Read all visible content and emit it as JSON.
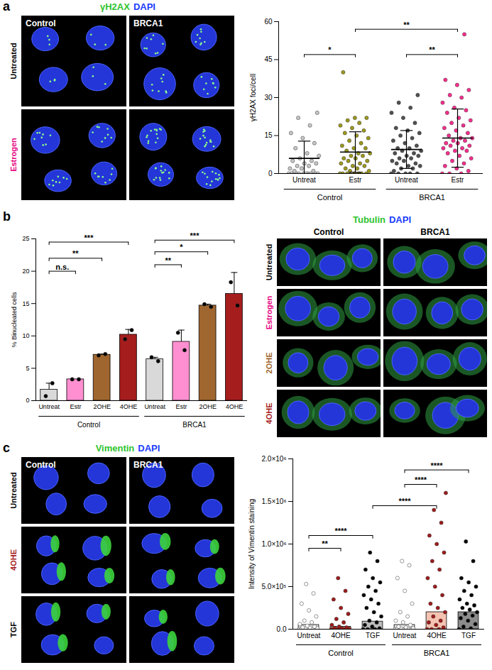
{
  "chart_data": [
    {
      "panel": "a",
      "type": "scatter",
      "ylabel": "γH2AX foci/cell",
      "categories": [
        "Untreat",
        "Estr",
        "Untreat",
        "Estr"
      ],
      "groups": [
        "Control",
        "Control",
        "BRCA1",
        "BRCA1"
      ],
      "ylim": [
        0,
        60
      ],
      "yticks": [
        0,
        15,
        30,
        45,
        60
      ],
      "series": [
        {
          "type": "scatter",
          "colors": [
            "#c8c8c8",
            "#9d9a1e",
            "#505050",
            "#ff2d8f"
          ],
          "values": [
            [
              0,
              0,
              0,
              0,
              0,
              0,
              0,
              0,
              0,
              0,
              1,
              1,
              2,
              2,
              3,
              3,
              4,
              4,
              5,
              5,
              6,
              7,
              8,
              10,
              12,
              14,
              16,
              19,
              22,
              24
            ],
            [
              0,
              0,
              0,
              0,
              0,
              0,
              0,
              1,
              1,
              2,
              2,
              3,
              3,
              4,
              4,
              5,
              5,
              6,
              6,
              7,
              7,
              8,
              8,
              9,
              10,
              10,
              11,
              12,
              13,
              14,
              15,
              16,
              17,
              18,
              19,
              20,
              21,
              22,
              22,
              40
            ],
            [
              0,
              0,
              0,
              0,
              0,
              1,
              2,
              2,
              3,
              3,
              4,
              4,
              5,
              5,
              6,
              6,
              7,
              7,
              8,
              8,
              9,
              9,
              10,
              10,
              11,
              12,
              13,
              14,
              15,
              16,
              17,
              18,
              20,
              22,
              24,
              26,
              28,
              31
            ],
            [
              0,
              0,
              0,
              1,
              2,
              3,
              4,
              5,
              6,
              7,
              8,
              9,
              9,
              10,
              10,
              11,
              11,
              12,
              12,
              13,
              13,
              14,
              14,
              15,
              16,
              17,
              18,
              19,
              20,
              21,
              22,
              24,
              25,
              26,
              28,
              30,
              31,
              33,
              35,
              37,
              55
            ]
          ]
        },
        {
          "type": "errorbar",
          "color": "#000000",
          "values": [
            6,
            8.5,
            9.5,
            14
          ],
          "error": [
            6.8,
            8,
            7.5,
            11.5
          ]
        }
      ],
      "significance": [
        {
          "from": 0,
          "to": 1,
          "label": "*",
          "y": 47
        },
        {
          "from": 1,
          "to": 3,
          "label": "**",
          "y": 57
        },
        {
          "from": 2,
          "to": 3,
          "label": "**",
          "y": 47
        }
      ]
    },
    {
      "panel": "b",
      "type": "bar",
      "ylabel": "% Binucleated cells",
      "categories": [
        "Untreat",
        "Estr",
        "2OHE",
        "4OHE",
        "Untreat",
        "Estr",
        "2OHE",
        "4OHE"
      ],
      "groups": [
        "Control",
        "Control",
        "Control",
        "Control",
        "BRCA1",
        "BRCA1",
        "BRCA1",
        "BRCA1"
      ],
      "ylim": [
        0,
        25
      ],
      "yticks": [
        0,
        5,
        10,
        15,
        20,
        25
      ],
      "series": [
        {
          "type": "bar",
          "colors": [
            "#d9d9d9",
            "#ff8fd0",
            "#a0662f",
            "#a61d1d",
            "#d9d9d9",
            "#ff8fd0",
            "#a0662f",
            "#a61d1d"
          ],
          "values": [
            1.7,
            3.3,
            7.1,
            10.2,
            6.4,
            9.1,
            14.7,
            16.5
          ],
          "error": [
            1.0,
            0,
            0.1,
            0.8,
            0.3,
            1.8,
            0.2,
            3.3
          ]
        },
        {
          "type": "scatter",
          "color": "#000000",
          "values": [
            [
              0.7,
              2.7
            ],
            [
              3.3,
              3.3
            ],
            [
              7.0,
              7.2
            ],
            [
              9.5,
              10.9
            ],
            [
              6.7,
              6.1
            ],
            [
              10.5,
              7.8
            ],
            [
              14.9,
              14.5
            ],
            [
              18.3,
              14.7
            ]
          ]
        }
      ],
      "significance": [
        {
          "from": 0,
          "to": 1,
          "label": "n.s.",
          "y": 20
        },
        {
          "from": 0,
          "to": 2,
          "label": "**",
          "y": 22
        },
        {
          "from": 0,
          "to": 3,
          "label": "***",
          "y": 24.5
        },
        {
          "from": 4,
          "to": 5,
          "label": "**",
          "y": 21
        },
        {
          "from": 4,
          "to": 6,
          "label": "*",
          "y": 23
        },
        {
          "from": 4,
          "to": 7,
          "label": "***",
          "y": 24.8
        }
      ]
    },
    {
      "panel": "c",
      "type": "bar",
      "ylabel": "Intensity of Vimentin staining",
      "categories": [
        "Untreat",
        "4OHE",
        "TGF",
        "Untreat",
        "4OHE",
        "TGF"
      ],
      "groups": [
        "Control",
        "Control",
        "Control",
        "BRCA1",
        "BRCA1",
        "BRCA1"
      ],
      "ylim": [
        0,
        2000000
      ],
      "yticks": [
        {
          "value": 0,
          "label": "0.0"
        },
        {
          "value": 500000,
          "label": "5.0×10⁵"
        },
        {
          "value": 1000000,
          "label": "1.0×10⁶"
        },
        {
          "value": 1500000,
          "label": "1.5×10⁶"
        },
        {
          "value": 2000000,
          "label": "2.0×10⁶"
        }
      ],
      "series": [
        {
          "type": "bar",
          "colors": [
            "#e6e6e6",
            "#e6e6e6",
            "#bdbdbd",
            "#e6e6e6",
            "#f6c3b2",
            "#8c8c8c"
          ],
          "values": [
            50000,
            30000,
            90000,
            50000,
            200000,
            200000
          ]
        },
        {
          "type": "scatter",
          "colors": [
            "#ffffff",
            "#9e1b1b",
            "#000000",
            "#ffffff",
            "#9e1b1b",
            "#000000"
          ],
          "values": [
            [
              0,
              0,
              0,
              0,
              0,
              0,
              0,
              5000,
              10000,
              15000,
              20000,
              30000,
              40000,
              60000,
              80000,
              100000,
              150000,
              220000,
              300000,
              420000,
              530000
            ],
            [
              0,
              0,
              0,
              0,
              0,
              0,
              0,
              0,
              5000,
              10000,
              15000,
              20000,
              30000,
              50000,
              80000,
              120000,
              180000,
              250000,
              350000,
              450000,
              600000
            ],
            [
              0,
              0,
              0,
              10000,
              30000,
              50000,
              80000,
              100000,
              150000,
              200000,
              250000,
              300000,
              350000,
              400000,
              450000,
              500000,
              550000,
              600000,
              700000,
              800000,
              900000
            ],
            [
              0,
              0,
              0,
              0,
              0,
              0,
              0,
              5000,
              10000,
              20000,
              30000,
              50000,
              80000,
              100000,
              150000,
              200000,
              300000,
              450000,
              600000,
              750000,
              800000
            ],
            [
              0,
              0,
              0,
              20000,
              50000,
              80000,
              100000,
              150000,
              200000,
              250000,
              300000,
              400000,
              500000,
              600000,
              700000,
              800000,
              900000,
              1000000,
              1100000,
              1250000,
              1400000,
              1600000
            ],
            [
              0,
              10000,
              30000,
              60000,
              100000,
              130000,
              160000,
              180000,
              200000,
              230000,
              250000,
              280000,
              300000,
              350000,
              400000,
              450000,
              500000,
              550000,
              600000,
              800000,
              1030000
            ]
          ]
        }
      ],
      "significance": [
        {
          "from": 0,
          "to": 1,
          "label": "**",
          "y": 950000
        },
        {
          "from": 0,
          "to": 2,
          "label": "****",
          "y": 1100000
        },
        {
          "from": 2,
          "to": 4,
          "label": "****",
          "y": 1450000
        },
        {
          "from": 3,
          "to": 4,
          "label": "****",
          "y": 1700000
        },
        {
          "from": 3,
          "to": 5,
          "label": "****",
          "y": 1870000
        }
      ]
    }
  ],
  "micrographs": [
    {
      "stain": [
        {
          "text": "γH2AX",
          "color": "#2fc42f"
        },
        {
          "text": "DAPI",
          "color": "#1a3cff"
        }
      ],
      "columns": [
        "Control",
        "BRCA1"
      ],
      "rows": [
        {
          "text": "Untreated",
          "color": "#000000"
        },
        {
          "text": "Estrogen",
          "color": "#e6007e"
        }
      ]
    },
    {
      "stain": [
        {
          "text": "Tubulin",
          "color": "#2fc42f"
        },
        {
          "text": "DAPI",
          "color": "#1a3cff"
        }
      ],
      "columns": [
        "Control",
        "BRCA1"
      ],
      "rows": [
        {
          "text": "Untreated",
          "color": "#000000"
        },
        {
          "text": "Estrogen",
          "color": "#e6007e"
        },
        {
          "text": "2OHE",
          "color": "#a0662f"
        },
        {
          "text": "4OHE",
          "color": "#a61d1d"
        }
      ]
    },
    {
      "stain": [
        {
          "text": "Vimentin",
          "color": "#2fc42f"
        },
        {
          "text": "DAPI",
          "color": "#1a3cff"
        }
      ],
      "columns": [
        "Control",
        "BRCA1"
      ],
      "rows": [
        {
          "text": "Untreated",
          "color": "#000000"
        },
        {
          "text": "4OHE",
          "color": "#a61d1d"
        },
        {
          "text": "TGF",
          "color": "#000000"
        }
      ]
    }
  ]
}
